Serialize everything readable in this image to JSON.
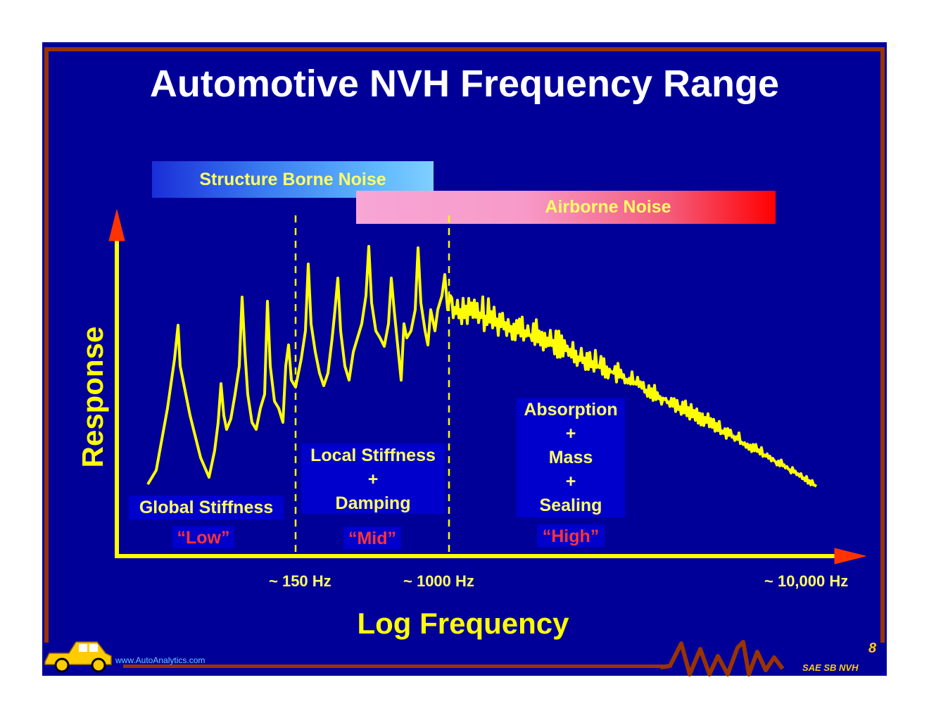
{
  "title": "Automotive NVH Frequency Range",
  "bands": {
    "structure": "Structure Borne Noise",
    "airborne": "Airborne Noise"
  },
  "regions": {
    "global": {
      "line1": "Global Stiffness",
      "tag": "“Low”"
    },
    "local": {
      "line1": "Local Stiffness",
      "plus1": "+",
      "line2": "Damping",
      "tag": "“Mid”"
    },
    "high": {
      "line1": "Absorption",
      "plus1": "+",
      "line2": "Mass",
      "plus2": "+",
      "line3": "Sealing",
      "tag": "“High”"
    }
  },
  "axes": {
    "ylabel": "Response",
    "xlabel": "Log Frequency",
    "ticks": [
      "~ 150 Hz",
      "~ 1000 Hz",
      "~ 10,000 Hz"
    ]
  },
  "footer": {
    "url": "www.AutoAnalytics.com",
    "brand": "SAE SB NVH",
    "page": "8"
  },
  "colors": {
    "background": "#000099",
    "curve": "#ffff00",
    "frame": "#993300",
    "arrowhead": "#ff3300"
  }
}
